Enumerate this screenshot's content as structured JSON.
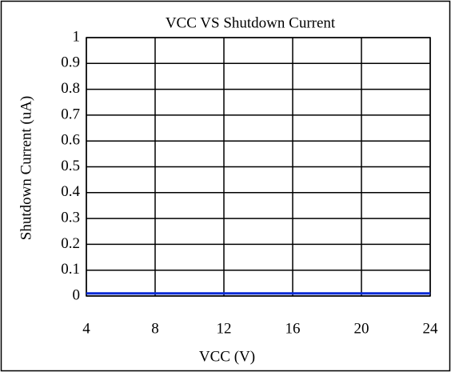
{
  "chart_data": {
    "type": "line",
    "title": "VCC VS Shutdown Current",
    "x_label": "VCC (V)",
    "y_label": "Shutdown Current (uA)",
    "x": [
      4,
      8,
      12,
      16,
      20,
      24
    ],
    "values": [
      0.01,
      0.01,
      0.01,
      0.01,
      0.01,
      0.01
    ],
    "color": "#0a2bd6",
    "xlim": [
      4,
      24
    ],
    "xticks": [
      4,
      8,
      12,
      16,
      20,
      24
    ],
    "ylim": [
      0,
      1
    ],
    "yticks": [
      0,
      0.1,
      0.2,
      0.3,
      0.4,
      0.5,
      0.6,
      0.7,
      0.8,
      0.9,
      1
    ],
    "grid": true
  }
}
